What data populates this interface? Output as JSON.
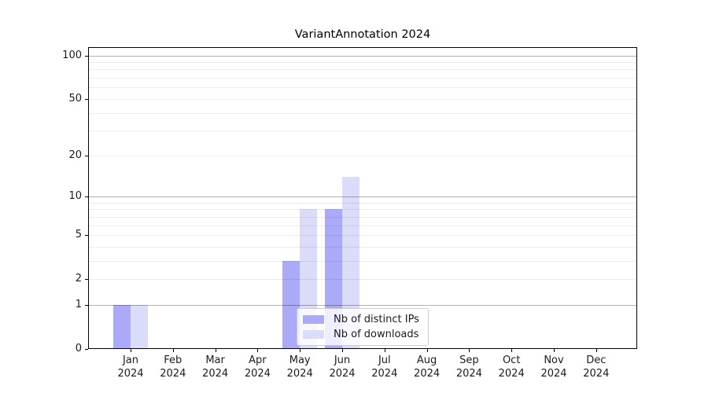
{
  "figure": {
    "title": "VariantAnnotation 2024"
  },
  "chart_data": {
    "type": "bar",
    "title": "VariantAnnotation 2024",
    "categories": [
      "Jan",
      "Feb",
      "Mar",
      "Apr",
      "May",
      "Jun",
      "Jul",
      "Aug",
      "Sep",
      "Oct",
      "Nov",
      "Dec"
    ],
    "category_year": "2024",
    "series": [
      {
        "name": "Nb of distinct IPs",
        "color": "#aaaaf8",
        "values": [
          1,
          0,
          0,
          0,
          3,
          8,
          0,
          0,
          0,
          0,
          0,
          0
        ]
      },
      {
        "name": "Nb of downloads",
        "color": "#dbdbfa",
        "values": [
          1,
          0,
          0,
          0,
          8,
          14,
          0,
          0,
          0,
          0,
          0,
          0
        ]
      }
    ],
    "yscale": "log1p",
    "ylim": [
      0,
      114
    ],
    "y_tick_values": [
      0,
      1,
      2,
      5,
      10,
      20,
      50,
      100
    ],
    "y_tick_labels": [
      "0",
      "1",
      "2",
      "5",
      "10",
      "20",
      "50",
      "100"
    ],
    "grid_major_values": [
      1,
      10,
      100
    ],
    "grid_minor_values": [
      2,
      3,
      4,
      5,
      6,
      7,
      8,
      9,
      20,
      30,
      40,
      50,
      60,
      70,
      80,
      90
    ],
    "legend": {
      "position": "inside-bottom-center",
      "entries": [
        {
          "label": "Nb of distinct IPs",
          "color": "#aaaaf8"
        },
        {
          "label": "Nb of downloads",
          "color": "#dbdbfa"
        }
      ]
    },
    "colors": {
      "background": "#ffffff",
      "axis": "#000000",
      "text": "#1a1a1a",
      "grid_major": "rgba(0,0,0,0.30)",
      "grid_minor": "rgba(0,0,0,0.075)"
    }
  }
}
